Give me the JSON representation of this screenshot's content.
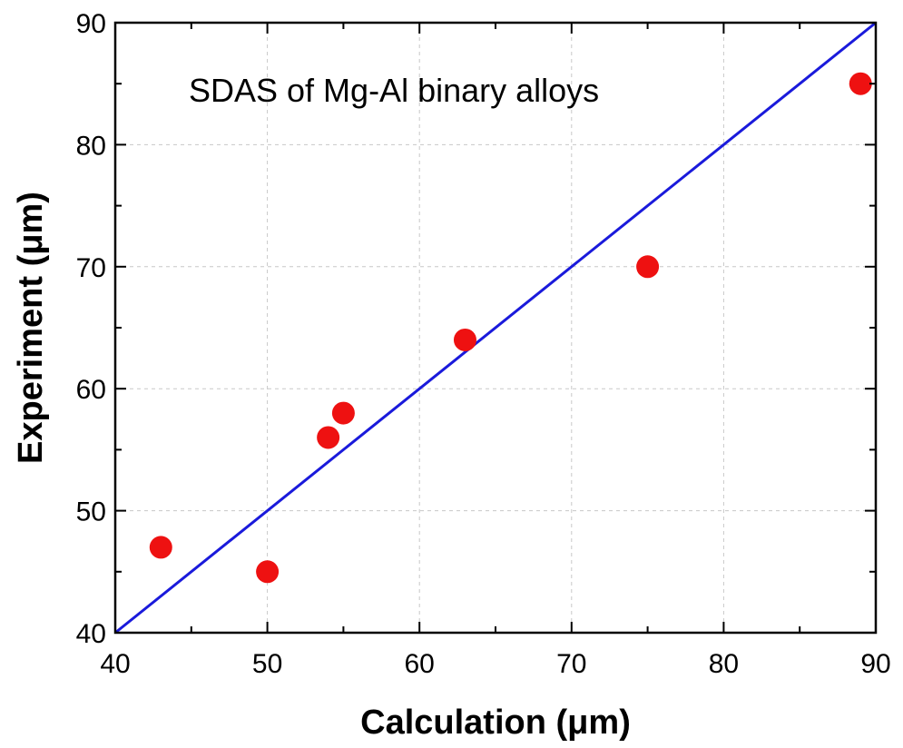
{
  "chart_data": {
    "type": "scatter",
    "annotation": "SDAS of Mg-Al binary alloys",
    "xlabel": "Calculation (μm)",
    "ylabel": "Experiment (μm)",
    "xlim": [
      40,
      90
    ],
    "ylim": [
      40,
      90
    ],
    "x_ticks": [
      "40",
      "50",
      "60",
      "70",
      "80",
      "90"
    ],
    "y_ticks": [
      "40",
      "50",
      "60",
      "70",
      "80",
      "90"
    ],
    "grid": true,
    "reference_line": {
      "from": [
        40,
        40
      ],
      "to": [
        90,
        90
      ],
      "color": "#1a1adb"
    },
    "points": [
      {
        "x": 43,
        "y": 47
      },
      {
        "x": 50,
        "y": 45
      },
      {
        "x": 54,
        "y": 56
      },
      {
        "x": 55,
        "y": 58
      },
      {
        "x": 63,
        "y": 64
      },
      {
        "x": 75,
        "y": 70
      },
      {
        "x": 89,
        "y": 85
      }
    ],
    "marker_color": "#ee1111"
  }
}
